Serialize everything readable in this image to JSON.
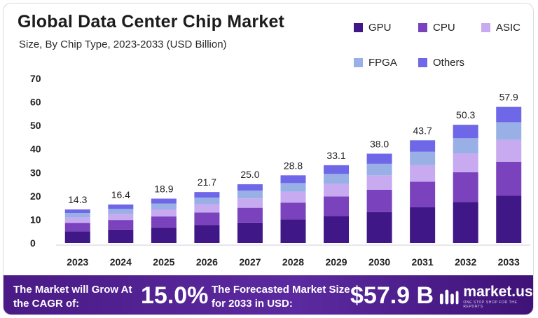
{
  "title": "Global Data Center Chip Market",
  "subtitle": "Size, By Chip Type, 2023-2033 (USD Billion)",
  "colors": {
    "GPU": "#3f1786",
    "CPU": "#7a43bd",
    "ASIC": "#c7aaf0",
    "FPGA": "#99b0e6",
    "Others": "#6e67e8",
    "banner": "#4a1a86"
  },
  "legend": [
    "GPU",
    "CPU",
    "ASIC",
    "FPGA",
    "Others"
  ],
  "chart_data": {
    "type": "bar",
    "stacked": true,
    "categories": [
      "2023",
      "2024",
      "2025",
      "2026",
      "2027",
      "2028",
      "2029",
      "2030",
      "2031",
      "2032",
      "2033"
    ],
    "series": [
      {
        "name": "GPU",
        "values": [
          5.0,
          5.7,
          6.6,
          7.6,
          8.7,
          10.0,
          11.5,
          13.2,
          15.2,
          17.5,
          20.1
        ]
      },
      {
        "name": "CPU",
        "values": [
          3.6,
          4.1,
          4.7,
          5.4,
          6.3,
          7.2,
          8.3,
          9.5,
          10.9,
          12.6,
          14.5
        ]
      },
      {
        "name": "ASIC",
        "values": [
          2.3,
          2.6,
          3.0,
          3.5,
          4.0,
          4.6,
          5.3,
          6.1,
          7.0,
          8.0,
          9.3
        ]
      },
      {
        "name": "FPGA",
        "values": [
          1.9,
          2.1,
          2.5,
          2.8,
          3.3,
          3.7,
          4.3,
          4.9,
          5.7,
          6.5,
          7.5
        ]
      },
      {
        "name": "Others",
        "values": [
          1.5,
          1.9,
          2.1,
          2.4,
          2.7,
          3.3,
          3.7,
          4.3,
          4.9,
          5.7,
          6.5
        ]
      }
    ],
    "totals": [
      14.3,
      16.4,
      18.9,
      21.7,
      25.0,
      28.8,
      33.1,
      38.0,
      43.7,
      50.3,
      57.9
    ],
    "total_labels": [
      "14.3",
      "16.4",
      "18.9",
      "21.7",
      "25.0",
      "28.8",
      "33.1",
      "38.0",
      "43.7",
      "50.3",
      "57.9"
    ],
    "ylim": [
      0,
      70
    ],
    "yticks": [
      0,
      10,
      20,
      30,
      40,
      50,
      60,
      70
    ],
    "grid": false,
    "legend_position": "top-right"
  },
  "banner": {
    "cagr_label": "The Market will Grow At the CAGR of:",
    "cagr_value": "15.0%",
    "forecast_label": "The Forecasted Market Size for 2033 in USD:",
    "forecast_value": "$57.9 B",
    "brand": "market.us",
    "tagline": "ONE STOP SHOP FOR THE REPORTS"
  }
}
